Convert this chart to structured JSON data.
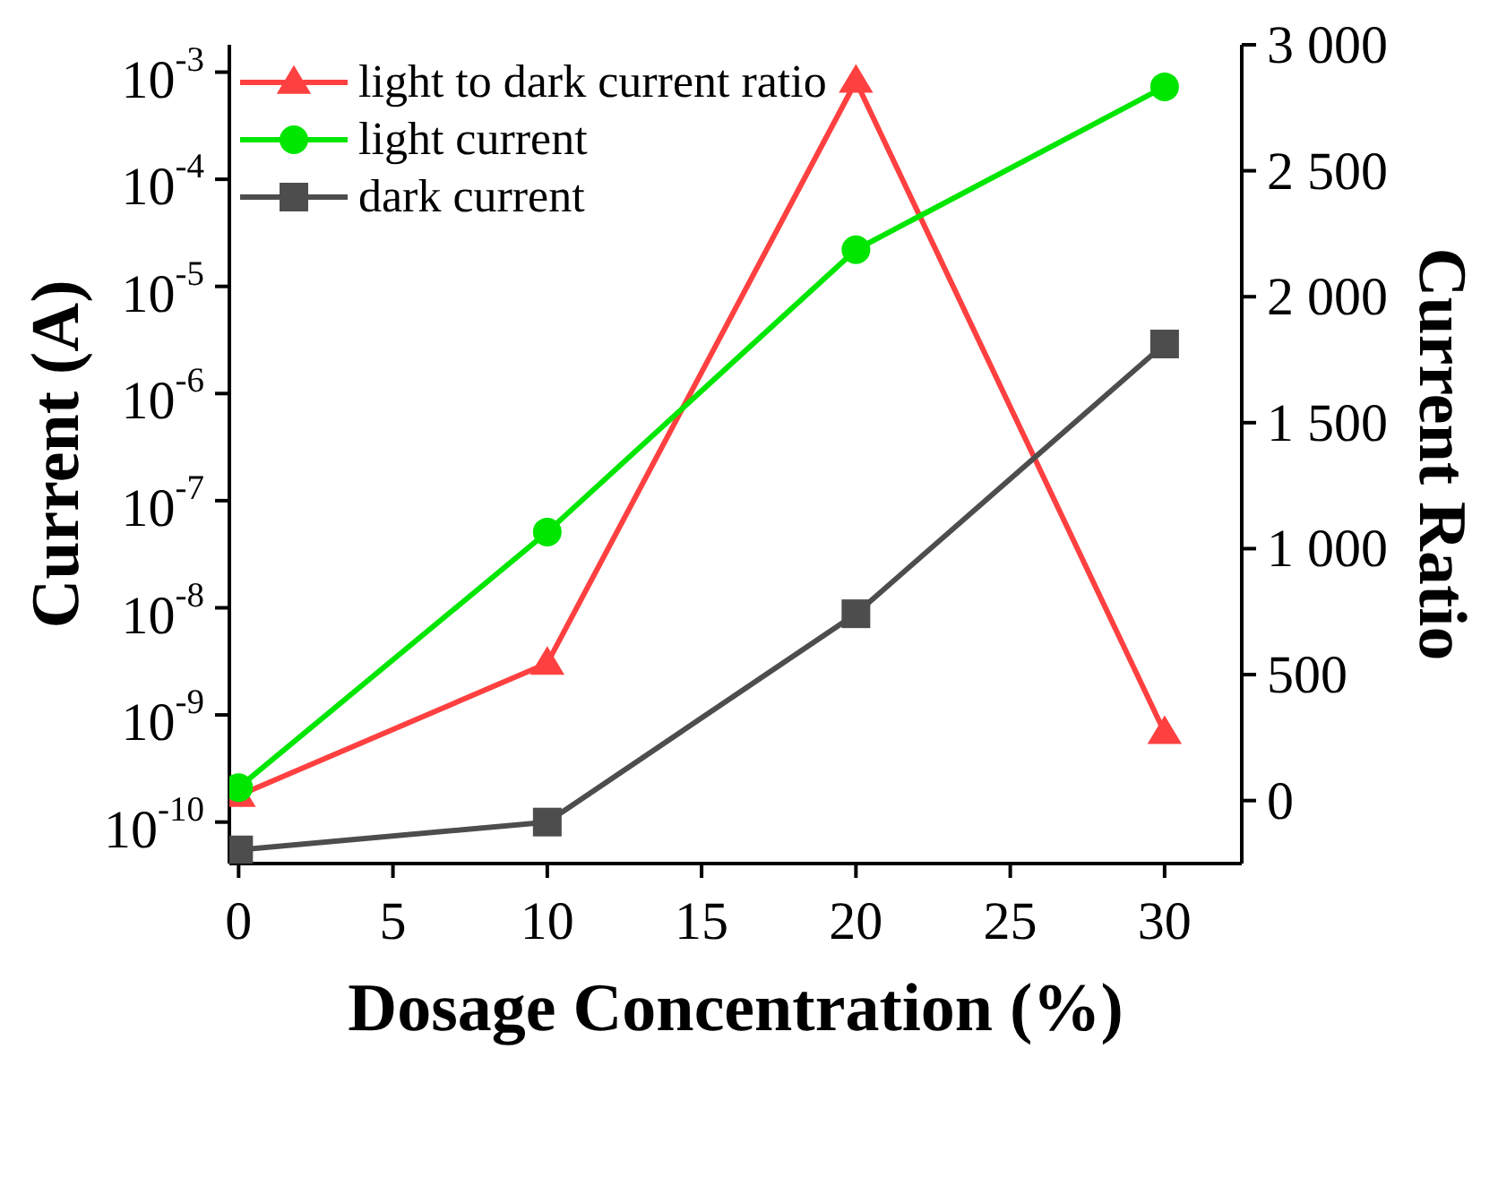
{
  "chart_data": {
    "type": "line",
    "xlabel": "Dosage Concentration (%)",
    "ylabel": "Current (A)",
    "y2label": "Current Ratio",
    "x": [
      0,
      10,
      20,
      30
    ],
    "series": [
      {
        "name": "light to dark current ratio",
        "color": "#ff4040",
        "values": [
          20,
          545,
          2855,
          270
        ],
        "axis": "y2",
        "marker": "triangle"
      },
      {
        "name": "light current",
        "color": "#00e600",
        "values": [
          2.1e-10,
          5.1e-08,
          2.2e-05,
          0.00073
        ],
        "marker": "circle"
      },
      {
        "name": "dark current",
        "color": "#4d4d4d",
        "values": [
          5.5e-11,
          1e-10,
          8.8e-09,
          2.9e-06
        ],
        "marker": "square"
      }
    ],
    "xlim": [
      -0.3,
      32.5
    ],
    "xticks": [
      0,
      5,
      10,
      15,
      20,
      25,
      30
    ],
    "ylim": [
      4.1e-11,
      0.0018
    ],
    "yticks": [
      {
        "value": 1e-10,
        "label": "10$^{-10}$"
      },
      {
        "value": 1e-09,
        "label": "10$^{-9}$"
      },
      {
        "value": 1e-08,
        "label": "10$^{-8}$"
      },
      {
        "value": 1e-07,
        "label": "10$^{-7}$"
      },
      {
        "value": 1e-06,
        "label": "10$^{-6}$"
      },
      {
        "value": 1e-05,
        "label": "10$^{-5}$"
      },
      {
        "value": 0.0001,
        "label": "10$^{-4}$"
      },
      {
        "value": 0.001,
        "label": "10$^{-3}$"
      }
    ],
    "y2lim": [
      -250,
      3000
    ],
    "y2ticks": [
      0,
      {
        "value": 500,
        "label": "500"
      },
      {
        "value": 1000,
        "label": "1 000"
      },
      {
        "value": 1500,
        "label": "1 500"
      },
      {
        "value": 2000,
        "label": "2 000"
      },
      {
        "value": 2500,
        "label": "2 500"
      },
      {
        "value": 3000,
        "label": "3 000"
      }
    ],
    "log": "y",
    "legend": "top left",
    "line_style": "solid"
  }
}
